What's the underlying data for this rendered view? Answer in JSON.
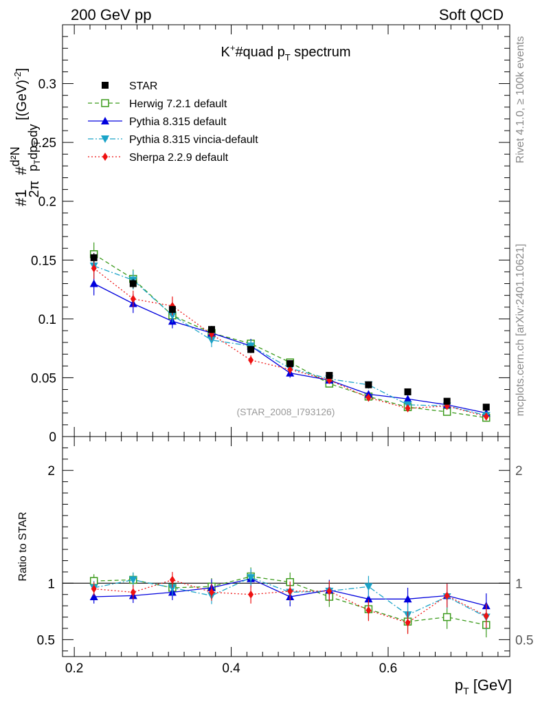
{
  "header": {
    "left": "200 GeV pp",
    "right": "Soft QCD"
  },
  "side": {
    "rivet": "Rivet 4.1.0, ≥ 100k events",
    "mcplots": "mcplots.cern.ch [arXiv:2401.10621]"
  },
  "chart_data": {
    "type": "line",
    "title": "K⁺#quad p_T spectrum",
    "title_main": "K",
    "title_sup": "+",
    "title_rest": "#quad p",
    "title_sub": "T",
    "title_tail": " spectrum",
    "analysis_label": "(STAR_2008_I793126)",
    "ylabel_main": "#½π # d²N / p_T dp_T dy [(GeV)⁻²]",
    "ylabel_ratio": "Ratio to STAR",
    "xlabel": "p",
    "xlabel_sub": "T",
    "xlabel_unit": " [GeV]",
    "xlim": [
      0.185,
      0.755
    ],
    "ylim_main": [
      0,
      0.35
    ],
    "ylim_ratio": [
      0.35,
      2.3
    ],
    "x_ticks": [
      0.2,
      0.4,
      0.6
    ],
    "x_tick_labels": [
      "0.2",
      "0.4",
      "0.6"
    ],
    "y_ticks_main": [
      0,
      0.05,
      0.1,
      0.15,
      0.2,
      0.25,
      0.3
    ],
    "y_tick_labels_main": [
      "0",
      "0.05",
      "0.1",
      "0.15",
      "0.2",
      "0.25",
      "0.3"
    ],
    "y_ticks_ratio": [
      0.5,
      1,
      2
    ],
    "y_tick_labels_ratio": [
      "0.5",
      "1",
      "2"
    ],
    "x": [
      0.225,
      0.275,
      0.325,
      0.375,
      0.425,
      0.475,
      0.525,
      0.575,
      0.625,
      0.675,
      0.725
    ],
    "series": [
      {
        "name": "STAR",
        "color": "#000000",
        "marker": "square",
        "line": "none",
        "values": [
          0.152,
          0.13,
          0.108,
          0.091,
          0.074,
          0.062,
          0.052,
          0.044,
          0.038,
          0.03,
          0.025
        ],
        "errors": [
          0.004,
          0.004,
          0.003,
          0.003,
          0.003,
          0.002,
          0.002,
          0.002,
          0.002,
          0.002,
          0.002
        ],
        "ratio": [
          1,
          1,
          1,
          1,
          1,
          1,
          1,
          1,
          1,
          1,
          1
        ]
      },
      {
        "name": "Herwig 7.2.1 default",
        "color": "#3a9a1a",
        "marker": "open-square",
        "line": "dashed",
        "values": [
          0.155,
          0.134,
          0.103,
          0.088,
          0.079,
          0.063,
          0.045,
          0.034,
          0.025,
          0.021,
          0.016
        ],
        "errors": [
          0.01,
          0.008,
          0.005,
          0.004,
          0.004,
          0.003,
          0.003,
          0.003,
          0.002,
          0.002,
          0.002
        ],
        "ratio": [
          1.02,
          1.03,
          0.96,
          0.97,
          1.06,
          1.01,
          0.88,
          0.77,
          0.66,
          0.7,
          0.63
        ]
      },
      {
        "name": "Pythia 8.315 default",
        "color": "#0000dd",
        "marker": "triangle-up",
        "line": "solid",
        "values": [
          0.13,
          0.113,
          0.098,
          0.088,
          0.077,
          0.054,
          0.048,
          0.036,
          0.032,
          0.027,
          0.02
        ],
        "errors": [
          0.01,
          0.008,
          0.006,
          0.005,
          0.006,
          0.004,
          0.003,
          0.003,
          0.003,
          0.002,
          0.002
        ],
        "ratio": [
          0.88,
          0.89,
          0.92,
          0.96,
          1.04,
          0.88,
          0.94,
          0.86,
          0.86,
          0.89,
          0.8
        ]
      },
      {
        "name": "Pythia 8.315 vincia-default",
        "color": "#1aa3c8",
        "marker": "triangle-down",
        "line": "dashdot",
        "values": [
          0.145,
          0.133,
          0.103,
          0.082,
          0.077,
          0.058,
          0.049,
          0.044,
          0.027,
          0.026,
          0.018
        ],
        "errors": [
          0.009,
          0.008,
          0.006,
          0.006,
          0.005,
          0.004,
          0.003,
          0.003,
          0.003,
          0.002,
          0.002
        ],
        "ratio": [
          0.96,
          1.03,
          0.96,
          0.89,
          1.05,
          0.92,
          0.93,
          0.97,
          0.72,
          0.88,
          0.7
        ]
      },
      {
        "name": "Sherpa 2.2.9 default",
        "color": "#ee1111",
        "marker": "diamond",
        "line": "dotted",
        "values": [
          0.143,
          0.117,
          0.111,
          0.087,
          0.065,
          0.057,
          0.048,
          0.033,
          0.024,
          0.026,
          0.017
        ],
        "errors": [
          0.009,
          0.007,
          0.008,
          0.005,
          0.004,
          0.004,
          0.003,
          0.003,
          0.003,
          0.002,
          0.002
        ],
        "ratio": [
          0.95,
          0.92,
          1.03,
          0.92,
          0.9,
          0.93,
          0.93,
          0.76,
          0.65,
          0.89,
          0.71
        ]
      }
    ]
  }
}
